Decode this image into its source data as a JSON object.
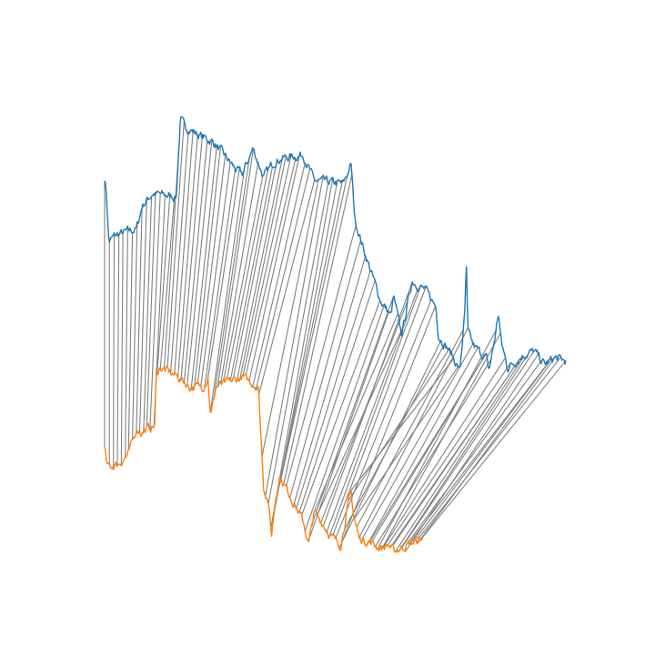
{
  "chart_data": {
    "type": "line",
    "axes_visible": false,
    "colors": {
      "series_a": "#1f77b4",
      "series_b": "#ff7f0e",
      "connector": "#808080"
    },
    "x_range": [
      0,
      870
    ],
    "y_range": [
      -6.5,
      7.5
    ],
    "series_a_anchors": [
      [
        0,
        5.1
      ],
      [
        3,
        4.7
      ],
      [
        8,
        3.1
      ],
      [
        20,
        3.3
      ],
      [
        60,
        3.5
      ],
      [
        68,
        4.0
      ],
      [
        70,
        4.2
      ],
      [
        90,
        4.6
      ],
      [
        135,
        4.5
      ],
      [
        143,
        6.9
      ],
      [
        150,
        6.7
      ],
      [
        180,
        6.4
      ],
      [
        205,
        6.2
      ],
      [
        250,
        5.3
      ],
      [
        260,
        5.2
      ],
      [
        280,
        6.0
      ],
      [
        300,
        5.1
      ],
      [
        320,
        5.6
      ],
      [
        335,
        5.7
      ],
      [
        375,
        5.8
      ],
      [
        395,
        5.0
      ],
      [
        450,
        4.9
      ],
      [
        465,
        5.5
      ],
      [
        472,
        3.8
      ],
      [
        490,
        2.8
      ],
      [
        520,
        1.3
      ],
      [
        540,
        0.8
      ],
      [
        545,
        1.4
      ],
      [
        560,
        0.2
      ],
      [
        580,
        1.9
      ],
      [
        605,
        1.6
      ],
      [
        625,
        1.1
      ],
      [
        630,
        0.2
      ],
      [
        655,
        -0.4
      ],
      [
        670,
        -0.9
      ],
      [
        680,
        1.0
      ],
      [
        682,
        2.6
      ],
      [
        685,
        0.3
      ],
      [
        695,
        -0.1
      ],
      [
        700,
        -0.2
      ],
      [
        720,
        -0.5
      ],
      [
        725,
        -0.9
      ],
      [
        735,
        0.0
      ],
      [
        743,
        0.9
      ],
      [
        748,
        0.0
      ],
      [
        760,
        -0.8
      ],
      [
        790,
        -0.4
      ],
      [
        810,
        -0.3
      ],
      [
        830,
        -0.7
      ],
      [
        850,
        -0.5
      ],
      [
        870,
        -0.6
      ]
    ],
    "series_b_anchors": [
      [
        0,
        -3.3
      ],
      [
        5,
        -3.9
      ],
      [
        25,
        -3.8
      ],
      [
        45,
        -3.5
      ],
      [
        60,
        -2.7
      ],
      [
        70,
        -2.8
      ],
      [
        95,
        -2.6
      ],
      [
        97,
        -1.0
      ],
      [
        105,
        -0.8
      ],
      [
        140,
        -1.1
      ],
      [
        160,
        -1.4
      ],
      [
        185,
        -1.4
      ],
      [
        195,
        -1.1
      ],
      [
        200,
        -2.3
      ],
      [
        210,
        -1.4
      ],
      [
        260,
        -1.1
      ],
      [
        290,
        -1.4
      ],
      [
        300,
        -4.5
      ],
      [
        308,
        -4.9
      ],
      [
        315,
        -6.0
      ],
      [
        322,
        -4.9
      ],
      [
        330,
        -4.2
      ],
      [
        345,
        -4.6
      ],
      [
        360,
        -5.1
      ],
      [
        375,
        -5.6
      ],
      [
        385,
        -6.3
      ],
      [
        395,
        -5.3
      ],
      [
        410,
        -5.6
      ],
      [
        430,
        -6.1
      ],
      [
        445,
        -6.3
      ],
      [
        460,
        -5.0
      ],
      [
        465,
        -4.7
      ],
      [
        470,
        -5.4
      ],
      [
        480,
        -6.1
      ],
      [
        500,
        -6.2
      ],
      [
        520,
        -6.4
      ],
      [
        535,
        -6.3
      ],
      [
        545,
        -6.5
      ],
      [
        600,
        -6.1
      ]
    ],
    "connector_lines": 100,
    "seed": 7
  }
}
